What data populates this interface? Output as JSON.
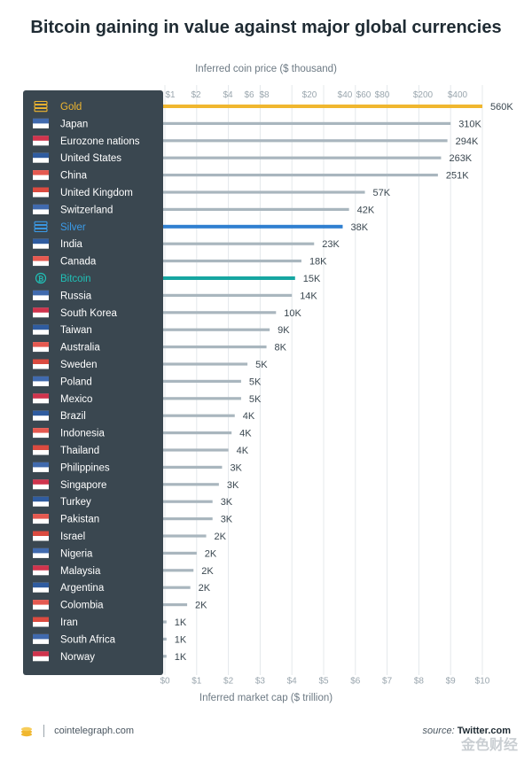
{
  "title": "Bitcoin gaining in value against major global currencies",
  "top_axis_label": "Inferred coin price ($ thousand)",
  "bottom_axis_label": "Inferred market cap ($ trillion)",
  "footer": {
    "brand": "cointelegraph.com",
    "source_prefix": "source:",
    "source_name": "Twitter.com",
    "watermark": "金色财经"
  },
  "colors": {
    "panel": "#3a4750",
    "bar": "#a9b6be",
    "gold": "#f0b72f",
    "silver": "#2f7fd0",
    "bitcoin": "#16a6a1",
    "label": "#ffffff",
    "silver_label": "#3b9be8",
    "bitcoin_label": "#20c0b6"
  },
  "chart_data": {
    "type": "bar",
    "orientation": "horizontal",
    "x_top_ticks": [
      "$1",
      "$2",
      "$4",
      "$6",
      "$8",
      "$20",
      "$40",
      "$60",
      "$80",
      "$200",
      "$400"
    ],
    "x_bottom_ticks": [
      "$0",
      "$1",
      "$2",
      "$3",
      "$4",
      "$5",
      "$6",
      "$7",
      "$8",
      "$9",
      "$10"
    ],
    "xlim_trillion": [
      0,
      10
    ],
    "categories": [
      "Gold",
      "Japan",
      "Eurozone nations",
      "United States",
      "China",
      "United Kingdom",
      "Switzerland",
      "Silver",
      "India",
      "Canada",
      "Bitcoin",
      "Russia",
      "South Korea",
      "Taiwan",
      "Australia",
      "Sweden",
      "Poland",
      "Mexico",
      "Brazil",
      "Indonesia",
      "Thailand",
      "Philippines",
      "Singapore",
      "Turkey",
      "Pakistan",
      "Israel",
      "Nigeria",
      "Malaysia",
      "Argentina",
      "Colombia",
      "Iran",
      "South Africa",
      "Norway"
    ],
    "value_labels": [
      "560K",
      "310K",
      "294K",
      "263K",
      "251K",
      "57K",
      "42K",
      "38K",
      "23K",
      "18K",
      "15K",
      "14K",
      "10K",
      "9K",
      "8K",
      "5K",
      "5K",
      "5K",
      "4K",
      "4K",
      "4K",
      "3K",
      "3K",
      "3K",
      "3K",
      "2K",
      "2K",
      "2K",
      "2K",
      "2K",
      "1K",
      "1K",
      "1K"
    ],
    "values_trillion": [
      10.0,
      9.0,
      8.9,
      8.7,
      8.6,
      6.3,
      5.8,
      5.6,
      4.7,
      4.3,
      4.1,
      4.0,
      3.5,
      3.3,
      3.2,
      2.6,
      2.4,
      2.4,
      2.2,
      2.1,
      2.0,
      1.8,
      1.7,
      1.5,
      1.5,
      1.3,
      1.0,
      0.9,
      0.8,
      0.7,
      0.05,
      0.05,
      0.05
    ],
    "highlight": {
      "Gold": "gold",
      "Silver": "silver",
      "Bitcoin": "bitcoin"
    },
    "icons": [
      "gold-bars-icon",
      "japan-flag-icon",
      "eu-flag-icon",
      "us-flag-icon",
      "china-flag-icon",
      "uk-flag-icon",
      "switzerland-flag-icon",
      "silver-bars-icon",
      "india-flag-icon",
      "canada-flag-icon",
      "bitcoin-icon",
      "russia-flag-icon",
      "south-korea-flag-icon",
      "taiwan-flag-icon",
      "australia-flag-icon",
      "sweden-flag-icon",
      "poland-flag-icon",
      "mexico-flag-icon",
      "brazil-flag-icon",
      "indonesia-flag-icon",
      "thailand-flag-icon",
      "philippines-flag-icon",
      "singapore-flag-icon",
      "turkey-flag-icon",
      "pakistan-flag-icon",
      "israel-flag-icon",
      "nigeria-flag-icon",
      "malaysia-flag-icon",
      "argentina-flag-icon",
      "colombia-flag-icon",
      "iran-flag-icon",
      "south-africa-flag-icon",
      "norway-flag-icon"
    ]
  }
}
